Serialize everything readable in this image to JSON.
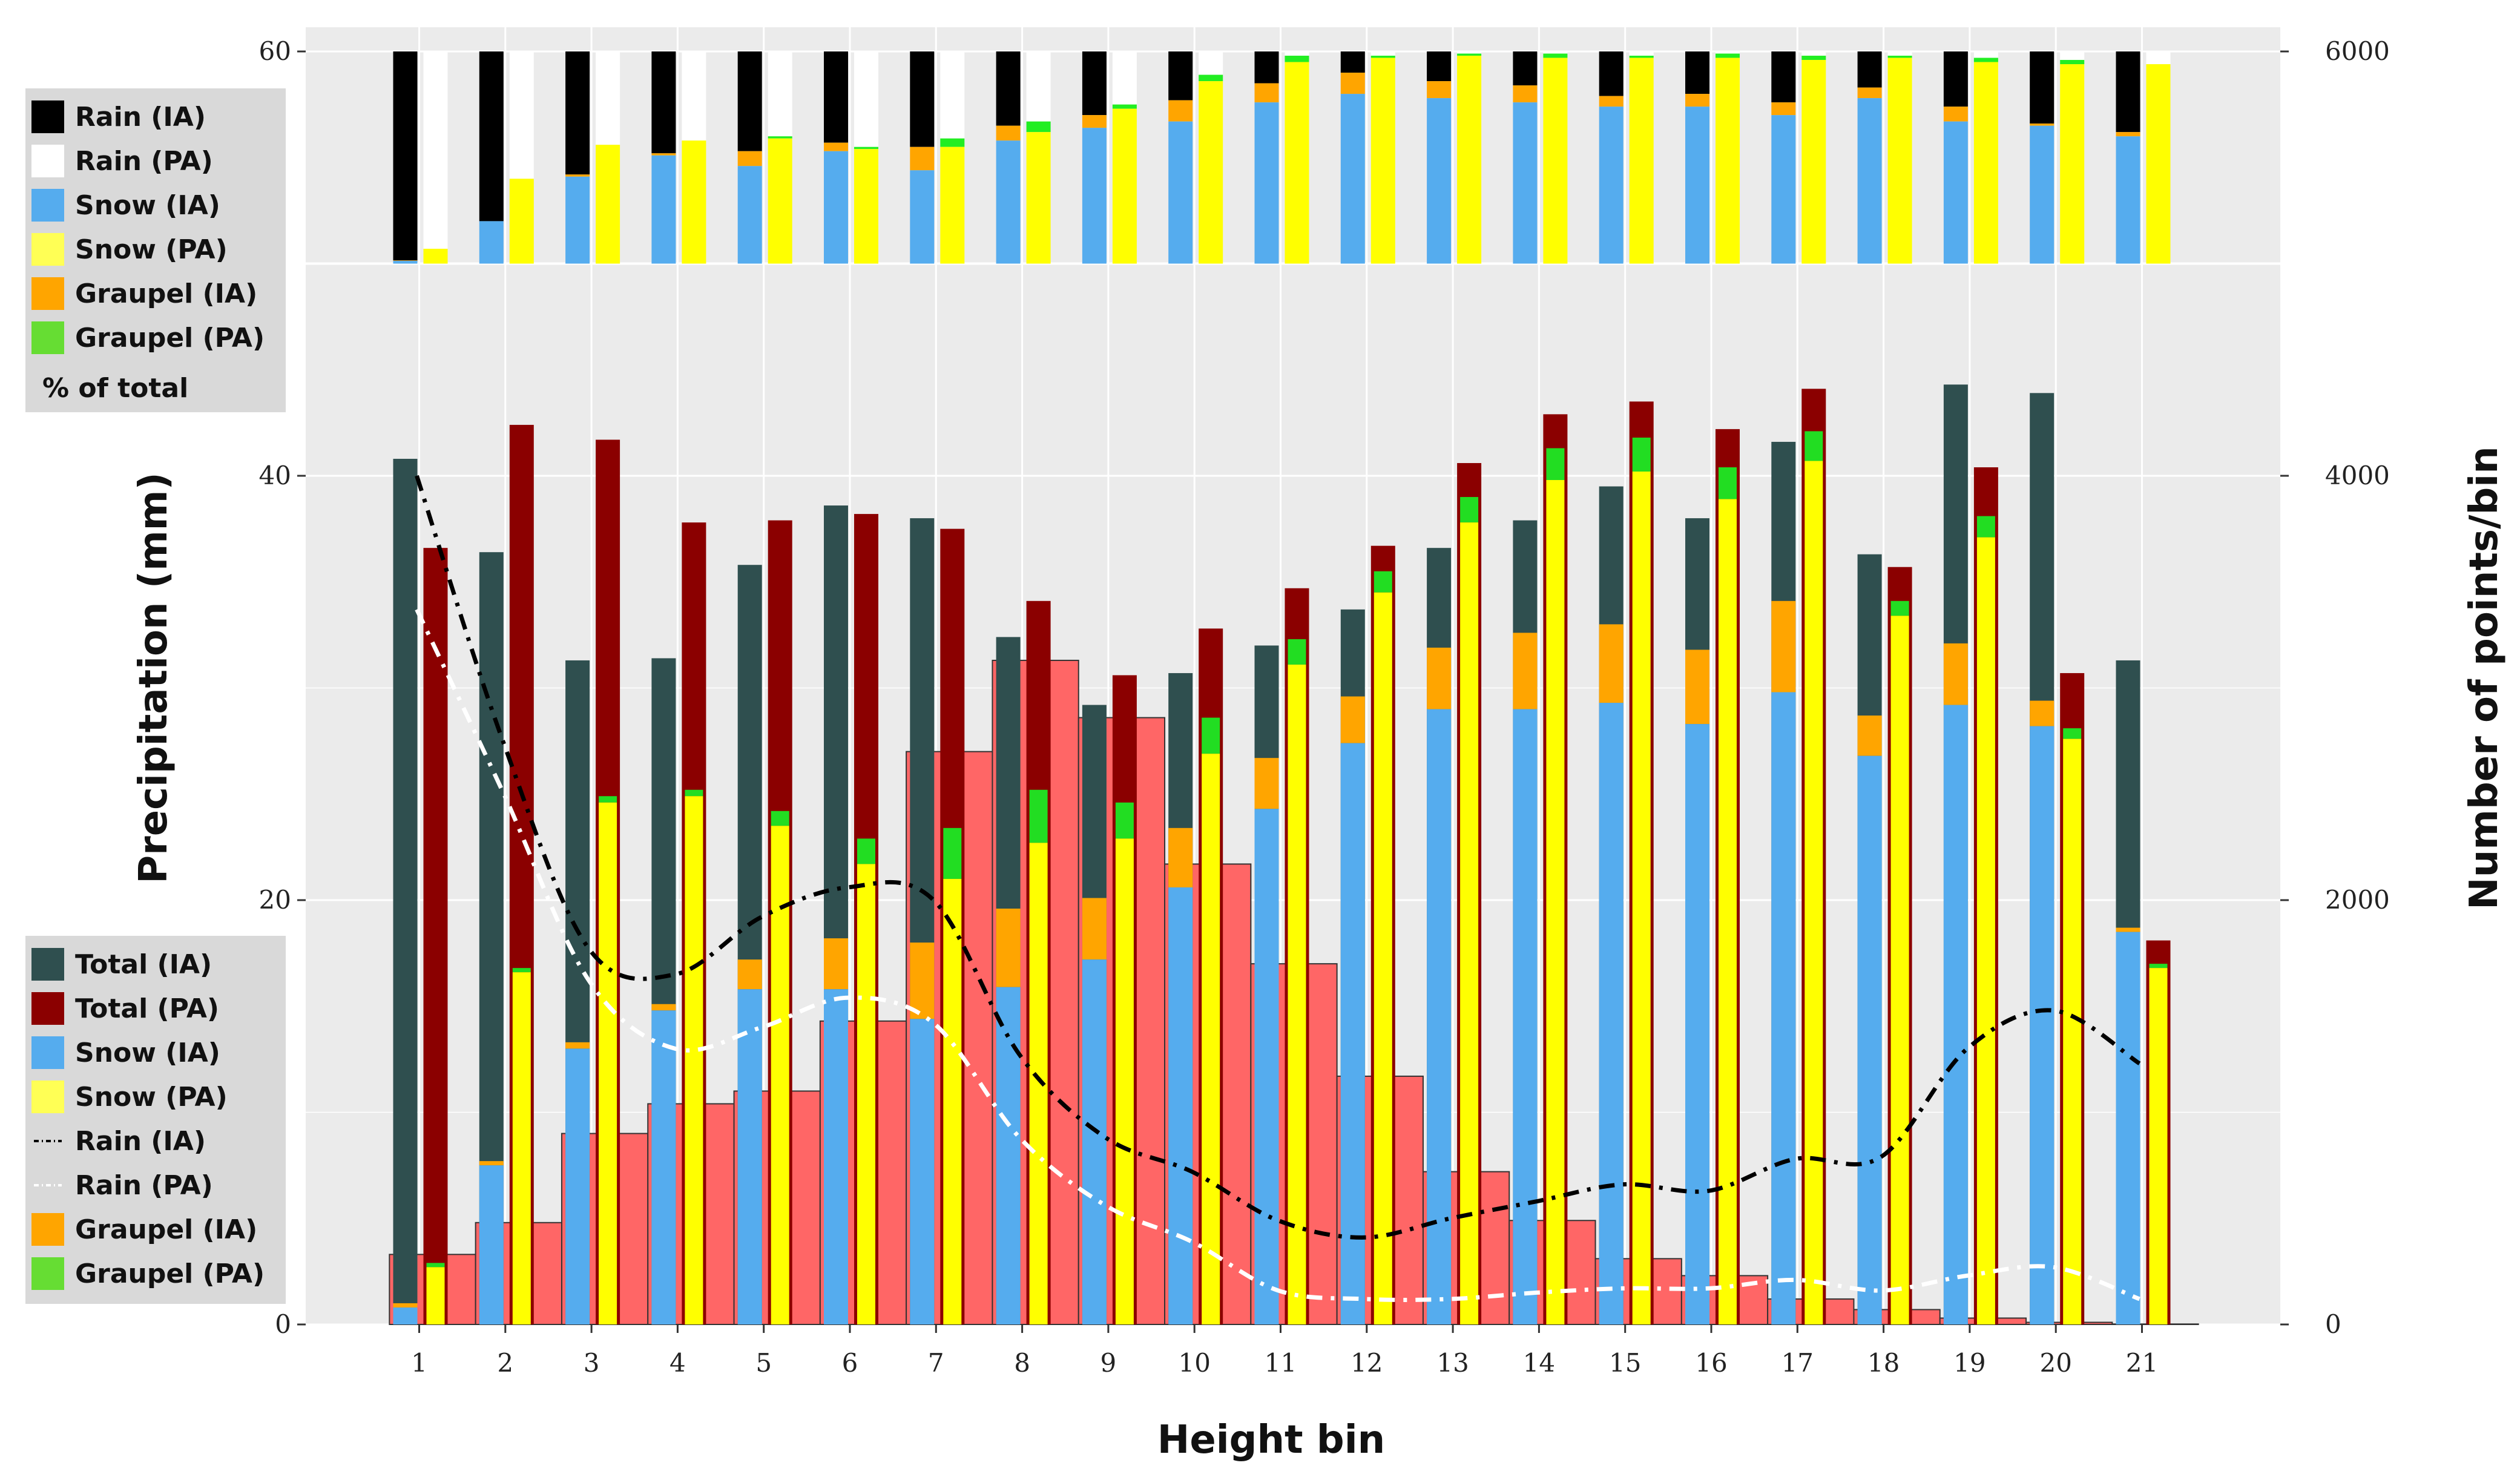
{
  "chart_data": {
    "type": "bar",
    "title": "",
    "xlabel": "Height bin",
    "ylabel": "Precipitation (mm)",
    "y2label": "Number of points/bin",
    "categories": [
      "1",
      "2",
      "3",
      "4",
      "5",
      "6",
      "7",
      "8",
      "9",
      "10",
      "11",
      "12",
      "13",
      "14",
      "15",
      "16",
      "17",
      "18",
      "19",
      "20",
      "21"
    ],
    "ylim": [
      0,
      60
    ],
    "y2lim": [
      0,
      6000
    ],
    "yticks": [
      0,
      20,
      40,
      60
    ],
    "y2ticks": [
      0,
      2000,
      4000,
      6000
    ],
    "points_per_bin": [
      330,
      480,
      900,
      1040,
      1100,
      1430,
      2700,
      3130,
      2860,
      2170,
      1700,
      1170,
      720,
      490,
      310,
      230,
      120,
      70,
      30,
      10,
      2
    ],
    "precipitation_series": [
      {
        "name": "Total (IA)",
        "color": "#2f4f4f",
        "values": [
          40.8,
          36.4,
          31.3,
          31.4,
          35.8,
          38.6,
          38.0,
          32.4,
          29.2,
          30.7,
          32.0,
          33.7,
          36.6,
          37.9,
          39.5,
          38.0,
          41.6,
          36.3,
          44.3,
          43.9,
          31.3
        ]
      },
      {
        "name": "Snow (IA)",
        "color": "#55acee",
        "values": [
          0.8,
          7.5,
          13.0,
          14.8,
          15.8,
          15.8,
          14.4,
          15.9,
          17.2,
          20.6,
          24.3,
          27.4,
          29.0,
          29.0,
          29.3,
          28.3,
          29.8,
          26.8,
          29.2,
          28.2,
          18.5
        ]
      },
      {
        "name": "Graupel (IA)",
        "color": "#ffa500",
        "values": [
          0.2,
          0.2,
          0.3,
          0.3,
          1.4,
          2.4,
          3.6,
          3.7,
          2.9,
          2.8,
          2.4,
          2.2,
          2.9,
          3.6,
          3.7,
          3.5,
          4.3,
          1.9,
          2.9,
          1.2,
          0.2
        ]
      },
      {
        "name": "Total (PA)",
        "color": "#8b0000",
        "values": [
          36.6,
          42.4,
          41.7,
          37.8,
          37.9,
          38.2,
          37.5,
          34.1,
          30.6,
          32.8,
          34.7,
          36.7,
          40.6,
          42.9,
          43.5,
          42.2,
          44.1,
          35.7,
          40.4,
          30.7,
          18.1
        ]
      },
      {
        "name": "Snow (PA)",
        "color": "#ffff00",
        "values": [
          2.7,
          16.6,
          24.6,
          24.9,
          23.5,
          21.7,
          21.0,
          22.7,
          22.9,
          26.9,
          31.1,
          34.5,
          37.8,
          39.8,
          40.2,
          38.9,
          40.7,
          33.4,
          37.1,
          27.6,
          16.8
        ]
      },
      {
        "name": "Graupel (PA)",
        "color": "#22dd22",
        "values": [
          0.2,
          0.2,
          0.3,
          0.3,
          0.7,
          1.2,
          2.4,
          2.5,
          1.7,
          1.7,
          1.2,
          1.0,
          1.2,
          1.5,
          1.6,
          1.5,
          1.4,
          0.7,
          1.0,
          0.5,
          0.2
        ]
      }
    ],
    "rain_lines": [
      {
        "name": "Rain (IA)",
        "color": "#000000",
        "style": "dash-dot",
        "values": [
          40.0,
          27.5,
          17.7,
          16.5,
          19.2,
          20.6,
          20.0,
          12.7,
          8.8,
          7.2,
          4.9,
          4.1,
          5.0,
          5.8,
          6.6,
          6.3,
          7.8,
          7.9,
          13.0,
          14.8,
          12.3
        ]
      },
      {
        "name": "Rain (PA)",
        "color": "#ffffff",
        "style": "dash-dot",
        "values": [
          33.7,
          25.1,
          16.2,
          13.0,
          14.0,
          15.4,
          14.2,
          8.8,
          5.6,
          3.9,
          1.6,
          1.2,
          1.2,
          1.5,
          1.7,
          1.7,
          2.1,
          1.6,
          2.3,
          2.7,
          1.2
        ]
      }
    ],
    "percent_of_total": {
      "ia_rain": [
        98.5,
        80,
        58,
        48,
        47,
        43,
        45,
        35,
        30,
        23,
        15,
        10,
        14,
        16,
        21,
        20,
        24,
        17,
        26,
        34,
        38
      ],
      "ia_snow": [
        1.3,
        20,
        41,
        51,
        46,
        53,
        44,
        58,
        64,
        67,
        76,
        80,
        78,
        76,
        74,
        74,
        70,
        78,
        67,
        65,
        60
      ],
      "ia_graupel": [
        0.2,
        0,
        1,
        1,
        7,
        4,
        11,
        7,
        6,
        10,
        9,
        10,
        8,
        8,
        5,
        6,
        6,
        5,
        7,
        1,
        2
      ],
      "pa_rain": [
        93,
        60,
        44,
        42,
        40,
        45,
        41,
        33,
        25,
        11,
        2,
        2,
        1,
        1,
        2,
        1,
        2,
        2,
        3,
        4,
        6
      ],
      "pa_snow": [
        7,
        40,
        56,
        58,
        59,
        54,
        55,
        62,
        73,
        86,
        95,
        97,
        98,
        97,
        97,
        97,
        96,
        97,
        95,
        94,
        94
      ],
      "pa_graupel": [
        0,
        0,
        0,
        0,
        1,
        1,
        4,
        5,
        2,
        3,
        3,
        1,
        1,
        2,
        1,
        2,
        2,
        1,
        2,
        2,
        0
      ]
    },
    "legends": {
      "top": [
        "Rain (IA)",
        "Rain (PA)",
        "Snow (IA)",
        "Snow (PA)",
        "Graupel (IA)",
        "Graupel (PA)"
      ],
      "top_note": "% of total",
      "bottom": [
        "Total (IA)",
        "Total (PA)",
        "Snow (IA)",
        "Snow (PA)",
        "Rain (IA)",
        "Rain (PA)",
        "Graupel (IA)",
        "Graupel (PA)"
      ]
    },
    "legend_colors": {
      "Rain (IA)": "#000000",
      "Rain (PA)": "#ffffff",
      "Snow (IA)": "#55acee",
      "Snow (PA)": "#ffff55",
      "Graupel (IA)": "#ffa500",
      "Graupel (PA)": "#66dd33",
      "Total (IA)": "#2f4f4f",
      "Total (PA)": "#8b0000"
    },
    "points_color": "#ff6666"
  }
}
